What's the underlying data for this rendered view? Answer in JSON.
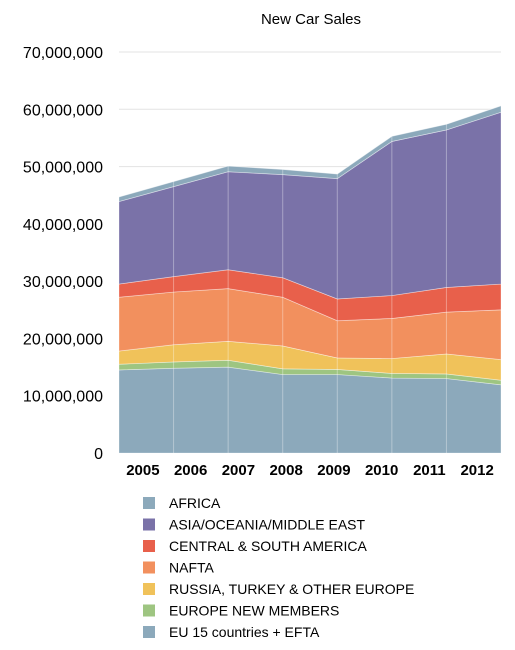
{
  "chart_data": {
    "type": "area",
    "stacked": true,
    "title": "New Car Sales",
    "xlabel": "",
    "ylabel": "",
    "categories": [
      "2005",
      "2006",
      "2007",
      "2008",
      "2009",
      "2010",
      "2011",
      "2012"
    ],
    "ylim": [
      0,
      70000000
    ],
    "yticks": [
      0,
      10000000,
      20000000,
      30000000,
      40000000,
      50000000,
      60000000,
      70000000
    ],
    "ytick_labels": [
      "0",
      "10,000,000",
      "20,000,000",
      "30,000,000",
      "40,000,000",
      "50,000,000",
      "60,000,000",
      "70,000,000"
    ],
    "grid": true,
    "legend_position": "bottom",
    "series": [
      {
        "name": "EU 15 countries + EFTA",
        "color": "#8ca9bb",
        "values": [
          14500000,
          14800000,
          15000000,
          13700000,
          13700000,
          13100000,
          13000000,
          11900000
        ]
      },
      {
        "name": "EUROPE NEW MEMBERS",
        "color": "#9ec581",
        "values": [
          1000000,
          1100000,
          1200000,
          1000000,
          900000,
          800000,
          800000,
          800000
        ]
      },
      {
        "name": "RUSSIA, TURKEY & OTHER EUROPE",
        "color": "#f0c25a",
        "values": [
          2300000,
          3000000,
          3300000,
          4000000,
          2000000,
          2600000,
          3500000,
          3600000
        ]
      },
      {
        "name": "NAFTA",
        "color": "#f2905e",
        "values": [
          9400000,
          9200000,
          9200000,
          8500000,
          6500000,
          7000000,
          7300000,
          8700000
        ]
      },
      {
        "name": "CENTRAL & SOUTH AMERICA",
        "color": "#e8604b",
        "values": [
          2300000,
          2700000,
          3300000,
          3400000,
          3800000,
          4000000,
          4300000,
          4500000
        ]
      },
      {
        "name": "ASIA/OCEANIA/MIDDLE EAST",
        "color": "#7a72a8",
        "values": [
          14400000,
          15700000,
          17100000,
          18000000,
          21000000,
          26900000,
          27500000,
          30000000
        ]
      },
      {
        "name": "AFRICA",
        "color": "#8ca9bb",
        "values": [
          800000,
          900000,
          1000000,
          900000,
          800000,
          900000,
          1000000,
          1100000
        ]
      }
    ],
    "legend_order": [
      "AFRICA",
      "ASIA/OCEANIA/MIDDLE EAST",
      "CENTRAL & SOUTH AMERICA",
      "NAFTA",
      "RUSSIA, TURKEY & OTHER EUROPE",
      "EUROPE NEW MEMBERS",
      "EU 15 countries + EFTA"
    ]
  }
}
